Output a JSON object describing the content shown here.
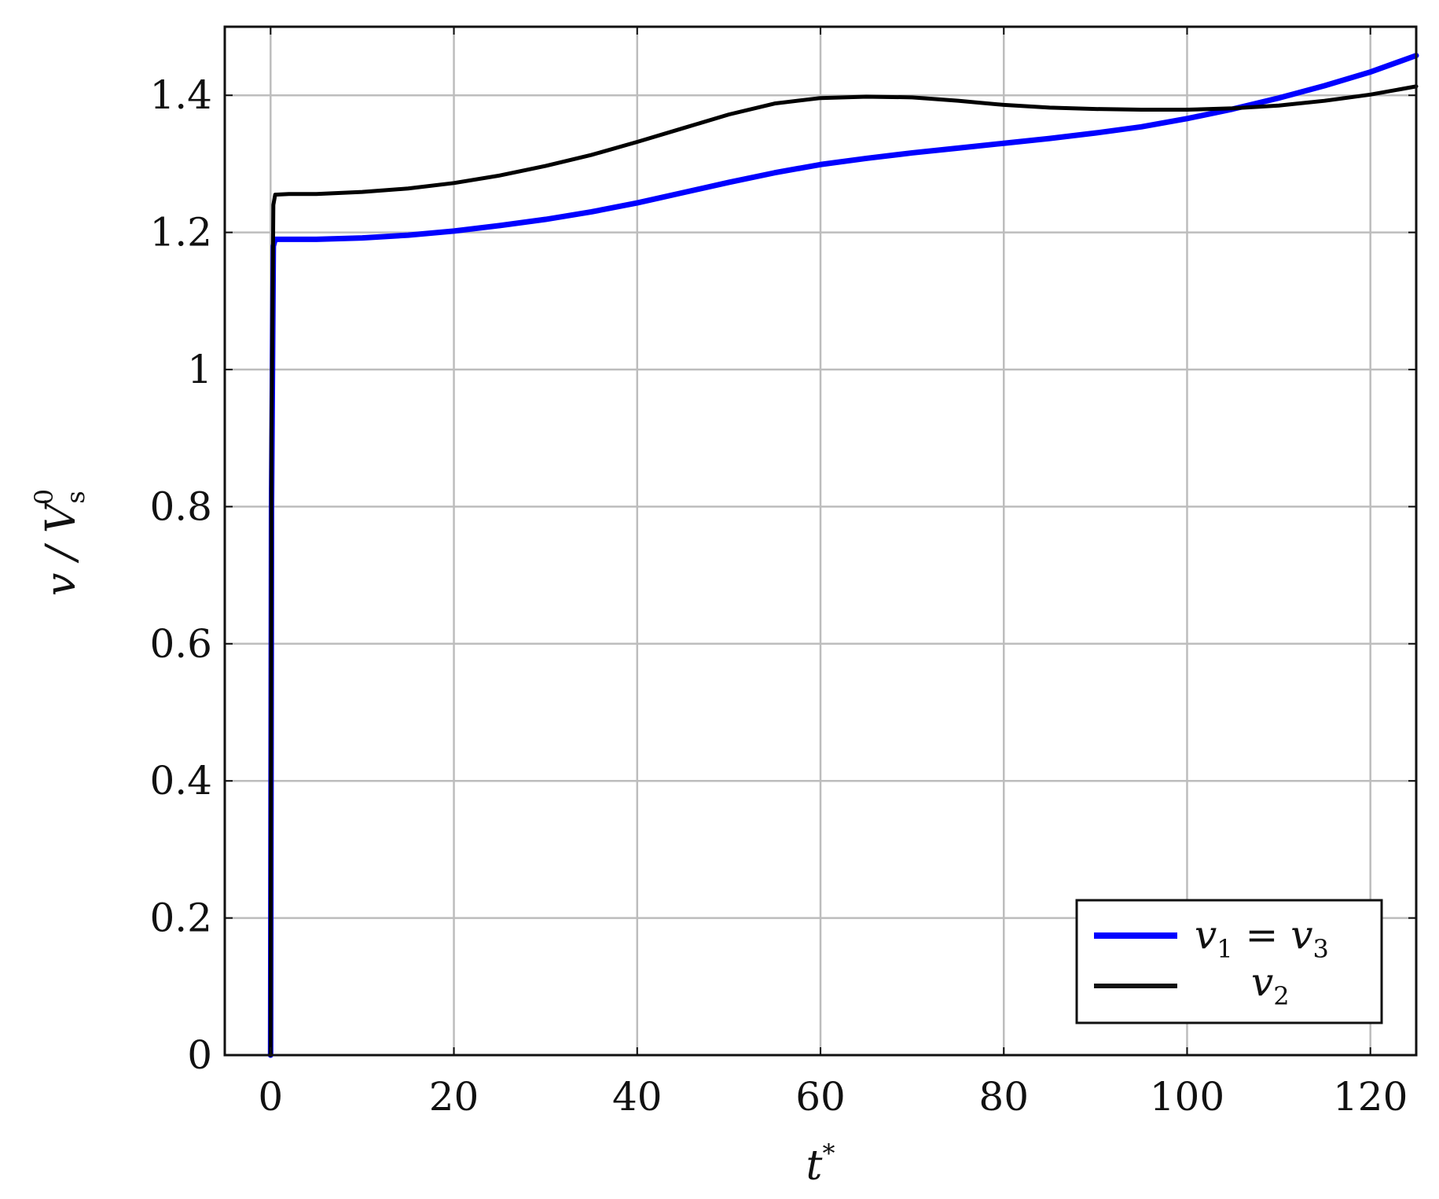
{
  "chart_data": {
    "type": "line",
    "xlabel": "t*",
    "ylabel": "v / V_s^0",
    "xlim": [
      -5,
      125
    ],
    "ylim": [
      0,
      1.5
    ],
    "xticks": [
      0,
      20,
      40,
      60,
      80,
      100,
      120
    ],
    "xtick_labels": [
      "0",
      "20",
      "40",
      "60",
      "80",
      "100",
      "120"
    ],
    "yticks": [
      0,
      0.2,
      0.4,
      0.6,
      0.8,
      1.0,
      1.2,
      1.4
    ],
    "ytick_labels": [
      "0",
      "0.2",
      "0.4",
      "0.6",
      "0.8",
      "1",
      "1.2",
      "1.4"
    ],
    "grid": true,
    "legend_position": "bottom-right",
    "series": [
      {
        "name": "v1 = v3",
        "color": "#0000ff",
        "x": [
          0,
          0.1,
          0.3,
          0.5,
          2,
          5,
          10,
          15,
          20,
          25,
          30,
          35,
          40,
          45,
          50,
          55,
          60,
          65,
          70,
          75,
          80,
          85,
          90,
          95,
          100,
          105,
          110,
          115,
          120,
          125
        ],
        "y": [
          0,
          0.8,
          1.18,
          1.19,
          1.19,
          1.19,
          1.192,
          1.196,
          1.202,
          1.21,
          1.219,
          1.23,
          1.243,
          1.258,
          1.273,
          1.287,
          1.299,
          1.308,
          1.316,
          1.323,
          1.33,
          1.337,
          1.345,
          1.354,
          1.366,
          1.38,
          1.396,
          1.414,
          1.434,
          1.458
        ]
      },
      {
        "name": "v2",
        "color": "#000000",
        "x": [
          0,
          0.1,
          0.3,
          0.5,
          2,
          5,
          10,
          15,
          20,
          25,
          30,
          35,
          40,
          45,
          50,
          55,
          60,
          65,
          70,
          75,
          80,
          85,
          90,
          95,
          100,
          105,
          110,
          115,
          120,
          125
        ],
        "y": [
          0,
          0.9,
          1.24,
          1.255,
          1.256,
          1.256,
          1.259,
          1.264,
          1.272,
          1.283,
          1.297,
          1.313,
          1.332,
          1.352,
          1.372,
          1.388,
          1.396,
          1.398,
          1.397,
          1.392,
          1.386,
          1.382,
          1.38,
          1.379,
          1.379,
          1.381,
          1.385,
          1.392,
          1.401,
          1.413
        ]
      }
    ]
  },
  "legend": {
    "entries": [
      {
        "label": "v",
        "sub": "1",
        "middle": " = v",
        "sub2": "3"
      },
      {
        "label": "v",
        "sub": "2"
      }
    ]
  }
}
